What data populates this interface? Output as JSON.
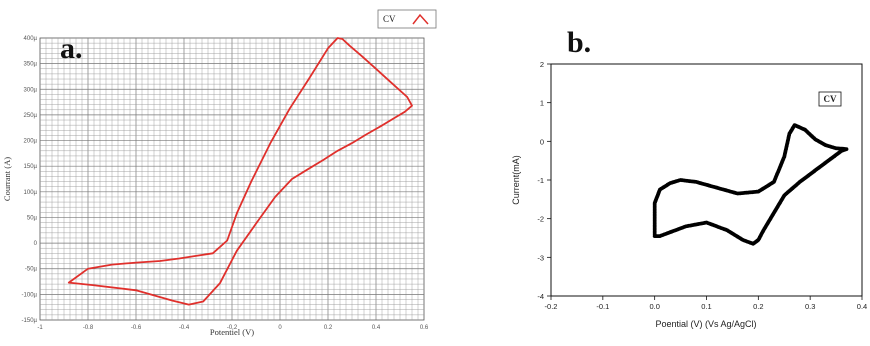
{
  "chart_data": [
    {
      "type": "line",
      "panel": "a.",
      "xlabel": "Potentiel (V)",
      "ylabel": "Courrant (A)",
      "xlim": [
        -1,
        0.6
      ],
      "ylim": [
        -150,
        400
      ],
      "grid": true,
      "legend": {
        "label": "CV",
        "placement": "top-right"
      },
      "x_ticks": [
        "-1",
        "-0.8",
        "-0.6",
        "-0.4",
        "-0.2",
        "0",
        "0.2",
        "0.4",
        "0.6"
      ],
      "y_ticks": [
        "400µ",
        "350µ",
        "300µ",
        "250µ",
        "200µ",
        "150µ",
        "100µ",
        "50µ",
        "0",
        "-50µ",
        "-100µ",
        "-150µ"
      ],
      "series": [
        {
          "name": "CV",
          "color": "#e0302c",
          "x": [
            -0.88,
            -0.78,
            -0.6,
            -0.45,
            -0.38,
            -0.32,
            -0.25,
            -0.18,
            -0.1,
            -0.02,
            0.05,
            0.12,
            0.18,
            0.24,
            0.3,
            0.36,
            0.42,
            0.48,
            0.52,
            0.55,
            0.53,
            0.47,
            0.4,
            0.34,
            0.29,
            0.26,
            0.24,
            0.2,
            0.12,
            0.04,
            -0.04,
            -0.12,
            -0.18,
            -0.22,
            -0.28,
            -0.35,
            -0.42,
            -0.5,
            -0.6,
            -0.7,
            -0.8,
            -0.88
          ],
          "y": [
            -77,
            -82,
            -92,
            -112,
            -120,
            -114,
            -78,
            -15,
            38,
            90,
            125,
            145,
            162,
            180,
            195,
            212,
            228,
            245,
            256,
            268,
            285,
            310,
            340,
            365,
            385,
            398,
            400,
            380,
            320,
            262,
            195,
            120,
            58,
            5,
            -20,
            -25,
            -30,
            -35,
            -38,
            -42,
            -50,
            -77
          ]
        }
      ]
    },
    {
      "type": "line",
      "panel": "b.",
      "xlabel": "Poential (V) (Vs Ag/AgCl)",
      "ylabel": "Current(mA)",
      "xlim": [
        -0.2,
        0.4
      ],
      "ylim": [
        -4,
        2
      ],
      "grid": false,
      "legend": {
        "label": "CV",
        "placement": "top-right"
      },
      "x_ticks": [
        "-0.2",
        "-0.1",
        "0.0",
        "0.1",
        "0.2",
        "0.3",
        "0.4"
      ],
      "y_ticks": [
        "2",
        "1",
        "0",
        "-1",
        "-2",
        "-3",
        "-4"
      ],
      "series": [
        {
          "name": "CV",
          "color": "#000000",
          "x": [
            0.0,
            0.0,
            0.01,
            0.03,
            0.05,
            0.08,
            0.12,
            0.16,
            0.2,
            0.23,
            0.25,
            0.26,
            0.27,
            0.29,
            0.31,
            0.33,
            0.35,
            0.37,
            0.36,
            0.34,
            0.31,
            0.28,
            0.25,
            0.23,
            0.21,
            0.2,
            0.19,
            0.17,
            0.14,
            0.1,
            0.06,
            0.03,
            0.01,
            0.0
          ],
          "y": [
            -2.45,
            -1.6,
            -1.25,
            -1.08,
            -1.0,
            -1.05,
            -1.2,
            -1.35,
            -1.3,
            -1.05,
            -0.4,
            0.2,
            0.42,
            0.3,
            0.05,
            -0.1,
            -0.18,
            -0.2,
            -0.25,
            -0.45,
            -0.75,
            -1.05,
            -1.4,
            -1.85,
            -2.3,
            -2.55,
            -2.65,
            -2.55,
            -2.3,
            -2.1,
            -2.2,
            -2.35,
            -2.45,
            -2.45
          ]
        }
      ]
    }
  ]
}
